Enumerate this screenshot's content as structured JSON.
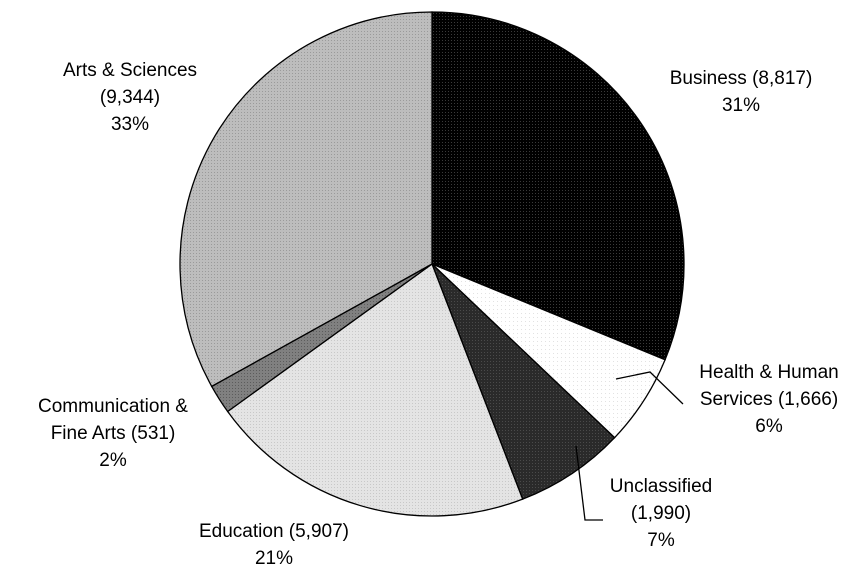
{
  "chart_data": {
    "type": "pie",
    "title": "",
    "start_angle_deg": 0,
    "direction": "clockwise",
    "slices": [
      {
        "name": "Business",
        "value": 8817,
        "percent_label": "31%",
        "label_lines": [
          "Business (8,817)",
          "31%"
        ],
        "fill": "#000000",
        "pattern": "dense-dark"
      },
      {
        "name": "Health & Human Services",
        "value": 1666,
        "percent_label": "6%",
        "label_lines": [
          "Health & Human",
          "Services (1,666)",
          "6%"
        ],
        "fill": "#ffffff",
        "pattern": "dots-light"
      },
      {
        "name": "Unclassified",
        "value": 1990,
        "percent_label": "7%",
        "label_lines": [
          "Unclassified",
          "(1,990)",
          "7%"
        ],
        "fill": "#2b2b2b",
        "pattern": "dark"
      },
      {
        "name": "Education",
        "value": 5907,
        "percent_label": "21%",
        "label_lines": [
          "Education (5,907)",
          "21%"
        ],
        "fill": "#dedede",
        "pattern": "light"
      },
      {
        "name": "Communication & Fine Arts",
        "value": 531,
        "percent_label": "2%",
        "label_lines": [
          "Communication &",
          "Fine Arts (531)",
          "2%"
        ],
        "fill": "#7a7a7a",
        "pattern": "mid"
      },
      {
        "name": "Arts & Sciences",
        "value": 9344,
        "percent_label": "33%",
        "label_lines": [
          "Arts & Sciences",
          "(9,344)",
          "33%"
        ],
        "fill": "#b4b4b4",
        "pattern": "mid-light"
      }
    ]
  }
}
